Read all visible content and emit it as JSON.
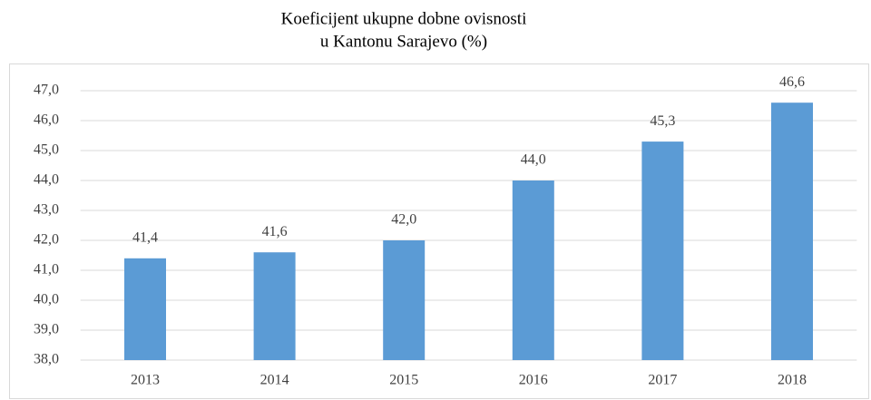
{
  "chart_data": {
    "type": "bar",
    "title": [
      "Koeficijent ukupne dobne ovisnosti",
      "u Kantonu Sarajevo (%)"
    ],
    "categories": [
      "2013",
      "2014",
      "2015",
      "2016",
      "2017",
      "2018"
    ],
    "values": [
      41.4,
      41.6,
      42.0,
      44.0,
      45.3,
      46.6
    ],
    "value_labels": [
      "41,4",
      "41,6",
      "42,0",
      "44,0",
      "45,3",
      "46,6"
    ],
    "color": "#5b9bd5",
    "ylim": [
      38,
      47
    ],
    "yticks": [
      {
        "value": 38,
        "label": "38,0"
      },
      {
        "value": 39,
        "label": "39,0"
      },
      {
        "value": 40,
        "label": "40,0"
      },
      {
        "value": 41,
        "label": "41,0"
      },
      {
        "value": 42,
        "label": "42,0"
      },
      {
        "value": 43,
        "label": "43,0"
      },
      {
        "value": 44,
        "label": "44,0"
      },
      {
        "value": 45,
        "label": "45,0"
      },
      {
        "value": 46,
        "label": "46,0"
      },
      {
        "value": 47,
        "label": "47,0"
      }
    ],
    "grid": true
  }
}
